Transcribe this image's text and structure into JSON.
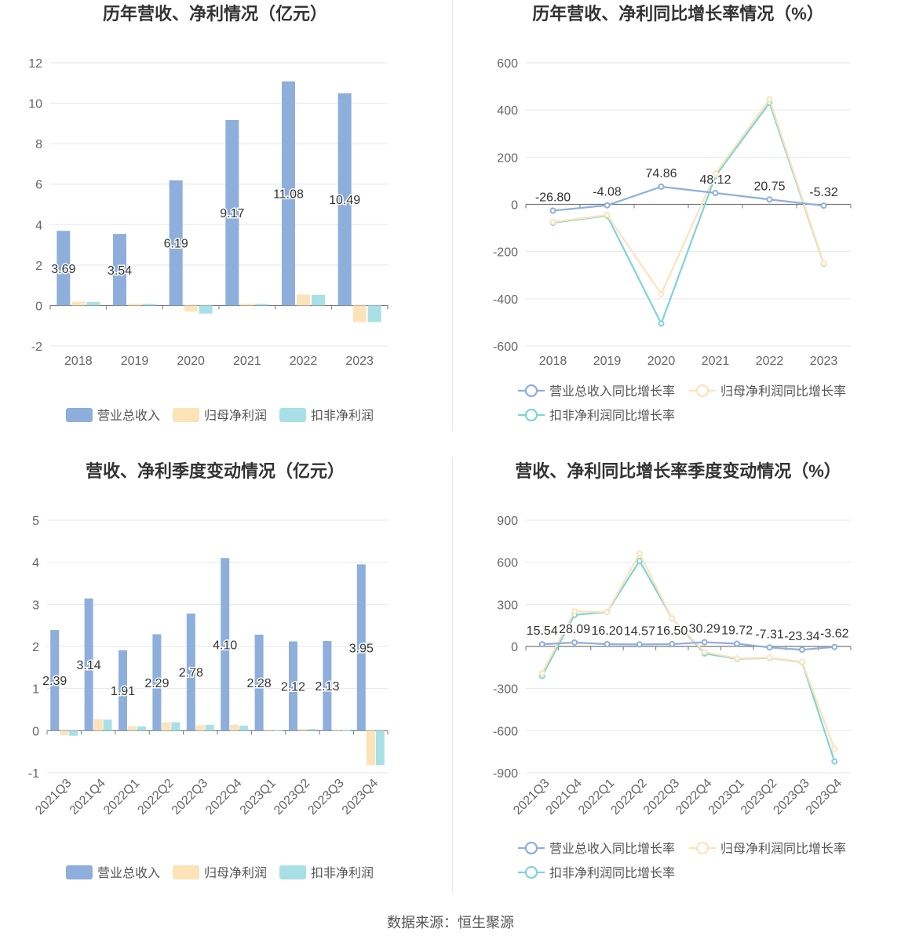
{
  "colors": {
    "revenue": "#8eaedc",
    "netProfit": "#fde3b8",
    "deducted": "#a8e0e6",
    "revenueLine": "#8eaedc",
    "netLine": "#fde3b8",
    "dedLine": "#7fd3d8"
  },
  "source_text": "数据来源：恒生聚源",
  "chart_data": [
    {
      "type": "bar",
      "title": "历年营收、净利情况（亿元）",
      "categories": [
        "2018",
        "2019",
        "2020",
        "2021",
        "2022",
        "2023"
      ],
      "series": [
        {
          "name": "营业总收入",
          "values": [
            3.69,
            3.54,
            6.19,
            9.17,
            11.08,
            10.49
          ]
        },
        {
          "name": "归母净利润",
          "values": [
            0.19,
            0.08,
            -0.3,
            0.08,
            0.54,
            -0.82
          ]
        },
        {
          "name": "扣非净利润",
          "values": [
            0.17,
            0.08,
            -0.4,
            0.08,
            0.53,
            -0.82
          ]
        }
      ],
      "labels": [
        "3.69",
        "3.54",
        "6.19",
        "9.17",
        "11.08",
        "10.49"
      ],
      "ylim": [
        -2,
        12
      ],
      "yticks": [
        "-2",
        "0",
        "2",
        "4",
        "6",
        "8",
        "10",
        "12"
      ],
      "grid": true,
      "legend": "bottom"
    },
    {
      "type": "line",
      "title": "历年营收、净利同比增长率情况（%）",
      "categories": [
        "2018",
        "2019",
        "2020",
        "2021",
        "2022",
        "2023"
      ],
      "series": [
        {
          "name": "营业总收入同比增长率",
          "values": [
            -26.8,
            -4.08,
            74.86,
            48.12,
            20.75,
            -5.32
          ]
        },
        {
          "name": "归母净利润同比增长率",
          "values": [
            -75,
            -45,
            -380,
            130,
            445,
            -250
          ]
        },
        {
          "name": "扣非净利润同比增长率",
          "values": [
            -78,
            -48,
            -505,
            120,
            430,
            -252
          ]
        }
      ],
      "labels": [
        "-26.80",
        "-4.08",
        "74.86",
        "48.12",
        "20.75",
        "-5.32"
      ],
      "ylim": [
        -600,
        600
      ],
      "yticks": [
        "-600",
        "-400",
        "-200",
        "0",
        "200",
        "400",
        "600"
      ],
      "grid": true,
      "legend": "bottom"
    },
    {
      "type": "bar",
      "title": "营收、净利季度变动情况（亿元）",
      "categories": [
        "2021Q3",
        "2021Q4",
        "2022Q1",
        "2022Q2",
        "2022Q3",
        "2022Q4",
        "2023Q1",
        "2023Q2",
        "2023Q3",
        "2023Q4"
      ],
      "series": [
        {
          "name": "营业总收入",
          "values": [
            2.39,
            3.14,
            1.91,
            2.29,
            2.78,
            4.1,
            2.28,
            2.12,
            2.13,
            3.95
          ]
        },
        {
          "name": "归母净利润",
          "values": [
            -0.1,
            0.27,
            0.11,
            0.2,
            0.13,
            0.14,
            0.02,
            0.04,
            0.02,
            -0.82
          ]
        },
        {
          "name": "扣非净利润",
          "values": [
            -0.12,
            0.26,
            0.1,
            0.2,
            0.14,
            0.12,
            0.01,
            0.04,
            0.01,
            -0.82
          ]
        }
      ],
      "labels": [
        "2.39",
        "3.14",
        "1.91",
        "2.29",
        "2.78",
        "4.10",
        "2.28",
        "2.12",
        "2.13",
        "3.95"
      ],
      "ylim": [
        -1,
        5
      ],
      "yticks": [
        "-1",
        "0",
        "1",
        "2",
        "3",
        "4",
        "5"
      ],
      "grid": true,
      "legend": "bottom"
    },
    {
      "type": "line",
      "title": "营收、净利同比增长率季度变动情况（%）",
      "categories": [
        "2021Q3",
        "2021Q4",
        "2022Q1",
        "2022Q2",
        "2022Q3",
        "2022Q4",
        "2023Q1",
        "2023Q2",
        "2023Q3",
        "2023Q4"
      ],
      "series": [
        {
          "name": "营业总收入同比增长率",
          "values": [
            15.54,
            28.09,
            16.2,
            14.57,
            16.5,
            30.29,
            19.72,
            -7.31,
            -23.34,
            -3.62
          ]
        },
        {
          "name": "归母净利润同比增长率",
          "values": [
            -190,
            250,
            245,
            660,
            200,
            -40,
            -85,
            -80,
            -110,
            -730
          ]
        },
        {
          "name": "扣非净利润同比增长率",
          "values": [
            -210,
            225,
            245,
            610,
            200,
            -50,
            -88,
            -82,
            -112,
            -820
          ]
        }
      ],
      "labels": [
        "15.54",
        "28.09",
        "16.20",
        "14.57",
        "16.50",
        "30.29",
        "19.72",
        "-7.31",
        "-23.34",
        "-3.62"
      ],
      "ylim": [
        -900,
        900
      ],
      "yticks": [
        "-900",
        "-600",
        "-300",
        "0",
        "300",
        "600",
        "900"
      ],
      "grid": true,
      "legend": "bottom"
    }
  ]
}
